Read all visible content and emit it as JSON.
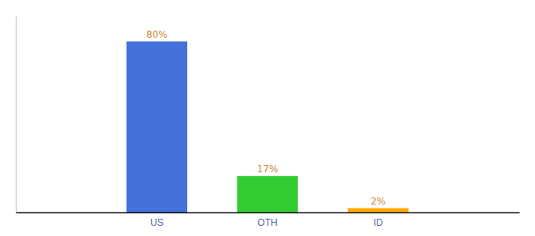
{
  "chart_data": {
    "type": "bar",
    "categories": [
      "US",
      "OTH",
      "ID"
    ],
    "values": [
      80,
      17,
      2
    ],
    "value_labels": [
      "80%",
      "17%",
      "2%"
    ],
    "colors": [
      "#4472db",
      "#33cc33",
      "#ffaa00"
    ],
    "ylim": [
      0,
      92
    ],
    "data_labels": true,
    "tick_labels": "x"
  }
}
